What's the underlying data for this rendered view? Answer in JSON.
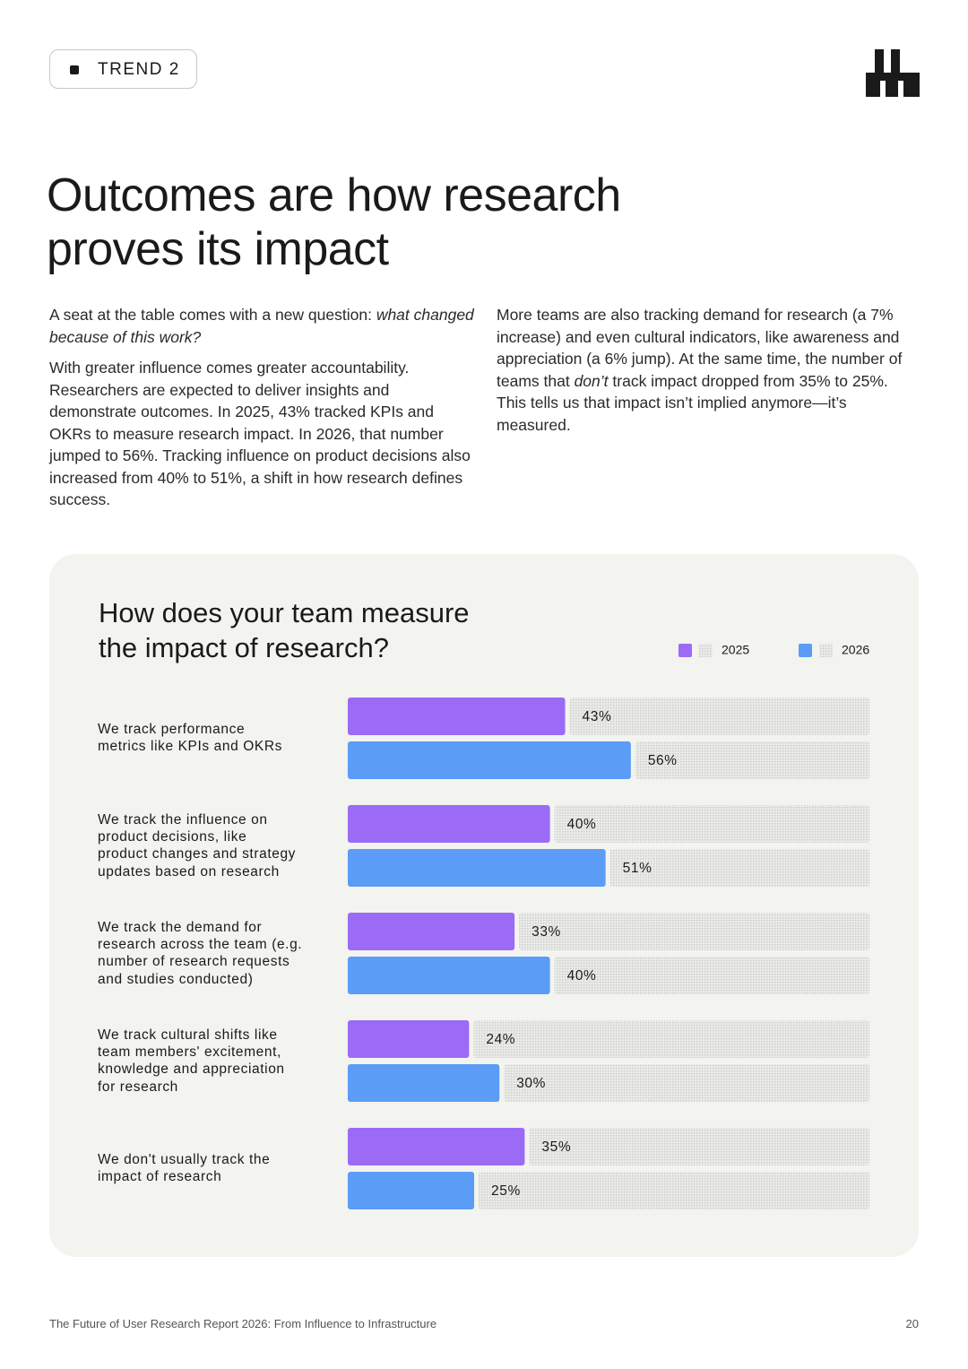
{
  "header": {
    "badge": "TREND 2"
  },
  "title": "Outcomes are how research\nproves its impact",
  "left_column": {
    "paragraph_1": [
      "A seat at the table comes with a new question: ",
      "what changed because of this work?"
    ],
    "paragraph_2": "With greater influence comes greater accountability. Researchers are expected to deliver insights and demonstrate outcomes. In 2025, 43% tracked KPIs and OKRs to measure research impact. In 2026, that number jumped to 56%. Tracking influence on product decisions also increased from 40% to 51%, a shift in how research defines success."
  },
  "right_column": {
    "paragraph": [
      "More teams are also tracking demand for research (a 7% increase) and even cultural indicators, like awareness and appreciation (a 6% jump). At the same time, the number of teams that ",
      "don’t",
      " track impact dropped from 35% to 25%. This tells us that impact isn’t implied anymore—it’s measured."
    ]
  },
  "chart_data": {
    "type": "hbar",
    "title": "How does your team measure\nthe impact of research?",
    "categories": [
      "We track performance\nmetrics like KPIs and OKRs",
      "We track the influence on\nproduct decisions, like\nproduct changes and strategy\nupdates based on research",
      "We track the demand for\nresearch across the team (e.g.\nnumber of research requests\nand studies conducted)",
      "We track cultural shifts like\nteam members' excitement,\nknowledge and appreciation\nfor research",
      "We don't usually track the\nimpact of research"
    ],
    "series": [
      {
        "name": "2025",
        "color": "#9b6bf6",
        "values": [
          43,
          40,
          33,
          24,
          35
        ],
        "value_labels": [
          "43%",
          "40%",
          "33%",
          "24%",
          "35%"
        ]
      },
      {
        "name": "2026",
        "color": "#5a9cf6",
        "values": [
          56,
          51,
          40,
          30,
          25
        ],
        "value_labels": [
          "56%",
          "51%",
          "40%",
          "30%",
          "25%"
        ]
      }
    ],
    "xlim": [
      0,
      100
    ]
  },
  "footer": {
    "text": "The Future of User Research Report 2026: From Influence to Infrastructure",
    "page": "20"
  }
}
